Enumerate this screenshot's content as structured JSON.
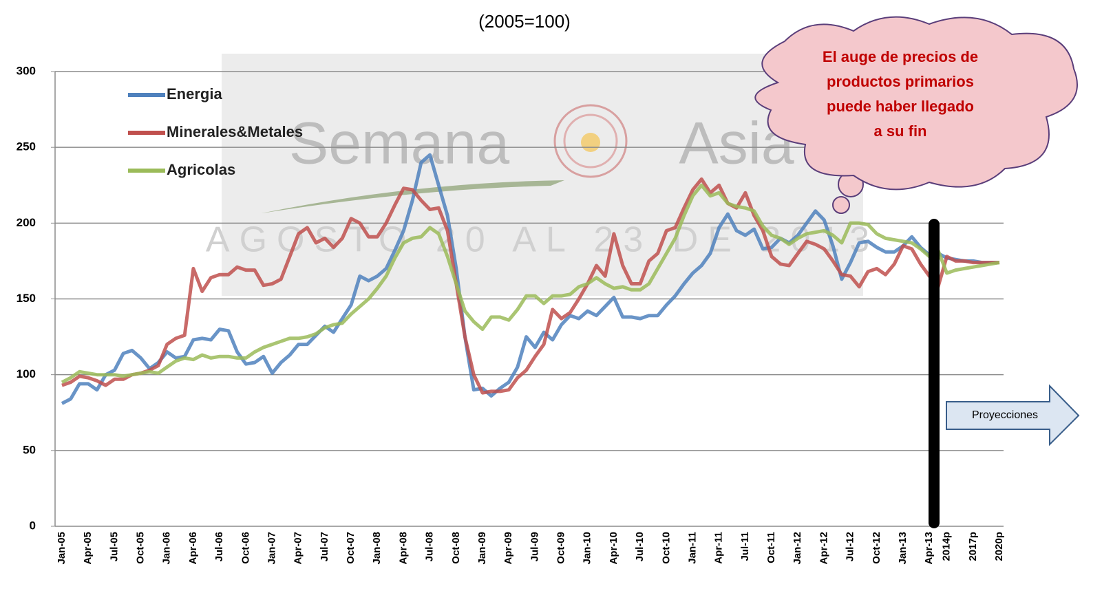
{
  "chart_data": {
    "type": "line",
    "subtitle": "(2005=100)",
    "watermark": [
      "Semana",
      "Asia",
      "AGOSTO 20 AL 23 DE 2013"
    ],
    "annotation": [
      "El auge de precios de",
      "productos primarios",
      "puede haber llegado",
      "a su fin"
    ],
    "projection_label": "Proyecciones",
    "categories": [
      "Jan-05",
      null,
      null,
      "Apr-05",
      null,
      null,
      "Jul-05",
      null,
      null,
      "Oct-05",
      null,
      null,
      "Jan-06",
      null,
      null,
      "Apr-06",
      null,
      null,
      "Jul-06",
      null,
      null,
      "Oct-06",
      null,
      null,
      "Jan-07",
      null,
      null,
      "Apr-07",
      null,
      null,
      "Jul-07",
      null,
      null,
      "Oct-07",
      null,
      null,
      "Jan-08",
      null,
      null,
      "Apr-08",
      null,
      null,
      "Jul-08",
      null,
      null,
      "Oct-08",
      null,
      null,
      "Jan-09",
      null,
      null,
      "Apr-09",
      null,
      null,
      "Jul-09",
      null,
      null,
      "Oct-09",
      null,
      null,
      "Jan-10",
      null,
      null,
      "Apr-10",
      null,
      null,
      "Jul-10",
      null,
      null,
      "Oct-10",
      null,
      null,
      "Jan-11",
      null,
      null,
      "Apr-11",
      null,
      null,
      "Jul-11",
      null,
      null,
      "Oct-11",
      null,
      null,
      "Jan-12",
      null,
      null,
      "Apr-12",
      null,
      null,
      "Jul-12",
      null,
      null,
      "Oct-12",
      null,
      null,
      "Jan-13",
      null,
      null,
      "Apr-13",
      null,
      "2014p",
      null,
      null,
      "2017p",
      null,
      null,
      "2020p"
    ],
    "series": [
      {
        "name": "Energia",
        "color": "#4f81bd",
        "values": [
          81,
          84,
          94,
          94,
          90,
          100,
          103,
          114,
          116,
          111,
          104,
          108,
          115,
          111,
          112,
          123,
          124,
          123,
          130,
          129,
          115,
          107,
          108,
          112,
          101,
          108,
          113,
          120,
          120,
          126,
          132,
          128,
          137,
          146,
          165,
          162,
          165,
          170,
          182,
          195,
          215,
          240,
          245,
          225,
          205,
          170,
          125,
          90,
          91,
          86,
          91,
          95,
          105,
          125,
          118,
          128,
          123,
          133,
          139,
          137,
          142,
          139,
          145,
          151,
          138,
          138,
          137,
          139,
          139,
          146,
          152,
          160,
          167,
          172,
          180,
          197,
          206,
          195,
          192,
          196,
          183,
          184,
          190,
          187,
          192,
          200,
          208,
          202,
          185,
          163,
          174,
          187,
          188,
          184,
          181,
          181,
          185,
          191,
          184,
          179,
          180,
          177,
          176,
          175,
          175,
          174,
          174,
          174
        ]
      },
      {
        "name": "Minerales&Metales",
        "color": "#c0504d",
        "values": [
          93,
          95,
          99,
          98,
          96,
          93,
          97,
          97,
          100,
          101,
          103,
          106,
          120,
          124,
          126,
          170,
          155,
          164,
          166,
          166,
          171,
          169,
          169,
          159,
          160,
          163,
          178,
          193,
          197,
          187,
          190,
          184,
          190,
          203,
          200,
          191,
          191,
          200,
          212,
          223,
          222,
          215,
          209,
          210,
          195,
          160,
          125,
          100,
          88,
          89,
          89,
          90,
          98,
          103,
          112,
          120,
          143,
          137,
          141,
          150,
          160,
          172,
          165,
          193,
          172,
          160,
          160,
          175,
          180,
          195,
          197,
          210,
          222,
          229,
          220,
          225,
          213,
          210,
          220,
          205,
          195,
          178,
          173,
          172,
          180,
          188,
          186,
          183,
          175,
          166,
          165,
          158,
          168,
          170,
          166,
          173,
          185,
          183,
          173,
          165,
          158,
          178,
          175,
          175,
          174,
          174,
          174,
          174
        ]
      },
      {
        "name": "Agricolas",
        "color": "#9bbb59",
        "values": [
          95,
          98,
          102,
          101,
          100,
          100,
          100,
          99,
          100,
          101,
          102,
          101,
          105,
          109,
          111,
          110,
          113,
          111,
          112,
          112,
          111,
          111,
          115,
          118,
          120,
          122,
          124,
          124,
          125,
          127,
          131,
          133,
          134,
          140,
          145,
          150,
          157,
          165,
          177,
          187,
          190,
          191,
          197,
          193,
          178,
          160,
          142,
          135,
          130,
          138,
          138,
          136,
          143,
          152,
          152,
          147,
          152,
          152,
          153,
          158,
          160,
          164,
          160,
          157,
          158,
          156,
          156,
          160,
          170,
          180,
          190,
          205,
          218,
          225,
          218,
          220,
          213,
          211,
          210,
          208,
          198,
          192,
          190,
          186,
          190,
          193,
          194,
          195,
          192,
          187,
          200,
          200,
          199,
          193,
          190,
          189,
          188,
          187,
          183,
          178,
          182,
          167,
          169,
          170,
          171,
          172,
          173,
          174
        ]
      }
    ],
    "ylim": [
      0,
      300
    ],
    "yticks": [
      0,
      50,
      100,
      150,
      200,
      250,
      300
    ],
    "grid": true,
    "legend": "top-left"
  }
}
